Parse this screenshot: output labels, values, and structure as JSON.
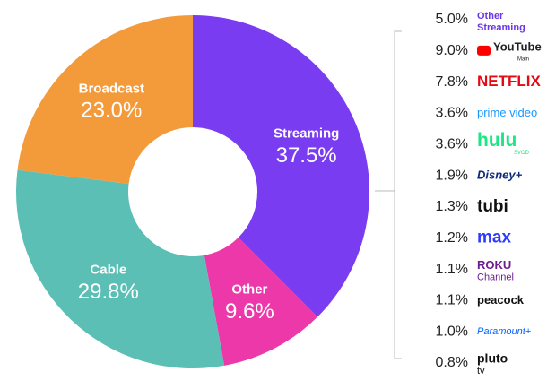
{
  "chart_data": {
    "type": "donut",
    "categories": [
      "Streaming",
      "Other",
      "Cable",
      "Broadcast"
    ],
    "values": [
      37.5,
      9.6,
      29.8,
      23.0
    ],
    "value_labels": [
      "37.5%",
      "9.6%",
      "29.8%",
      "23.0%"
    ],
    "colors": [
      "#7a3cf0",
      "#ec38a8",
      "#5bbfb6",
      "#f39a3b"
    ]
  },
  "streaming_breakdown": {
    "rows": [
      {
        "share": "5.0%",
        "service": "Other",
        "sub": "Streaming"
      },
      {
        "share": "9.0%",
        "service": "YouTube",
        "sub": "Main"
      },
      {
        "share": "7.8%",
        "service": "NETFLIX"
      },
      {
        "share": "3.6%",
        "service": "prime video"
      },
      {
        "share": "3.6%",
        "service": "hulu",
        "sub": "SVOD"
      },
      {
        "share": "1.9%",
        "service": "Disney+"
      },
      {
        "share": "1.3%",
        "service": "tubi"
      },
      {
        "share": "1.2%",
        "service": "max"
      },
      {
        "share": "1.1%",
        "service": "ROKU",
        "sub": "Channel"
      },
      {
        "share": "1.1%",
        "service": "peacock"
      },
      {
        "share": "1.0%",
        "service": "Paramount+"
      },
      {
        "share": "0.8%",
        "service": "pluto",
        "sub": "tv"
      }
    ]
  }
}
